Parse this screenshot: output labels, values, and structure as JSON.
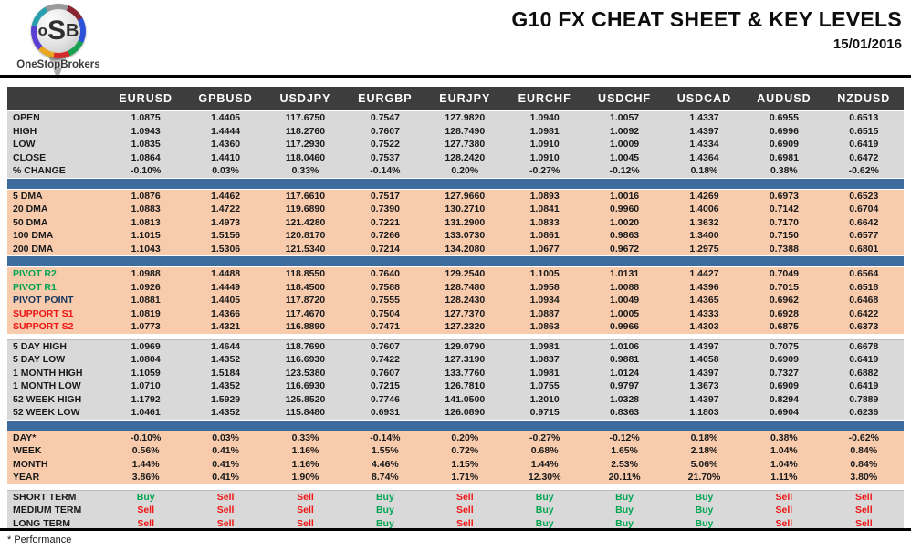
{
  "brand": {
    "logo_o": "o",
    "logo_s": "S",
    "logo_b": "B",
    "logo_caption": "OneStopBrokers"
  },
  "header": {
    "title": "G10 FX CHEAT SHEET & KEY LEVELS",
    "date": "15/01/2016"
  },
  "footnote": "* Performance",
  "colors": {
    "header_bar": "#3d3d3d",
    "gray_section": "#d9d9d9",
    "peach_section": "#f8cbad",
    "blue_divider": "#3e6b9e",
    "buy_green": "#00a551",
    "sell_red": "#f01414",
    "pivot_navy": "#17365d"
  },
  "table": {
    "columns": [
      "EURUSD",
      "GPBUSD",
      "USDJPY",
      "EURGBP",
      "EURJPY",
      "EURCHF",
      "USDCHF",
      "USDCAD",
      "AUDUSD",
      "NZDUSD"
    ],
    "sections": [
      {
        "id": "ohlc",
        "theme": "gray",
        "divider_before": null,
        "rows": [
          {
            "label": "OPEN",
            "values": [
              "1.0875",
              "1.4405",
              "117.6750",
              "0.7547",
              "127.9820",
              "1.0940",
              "1.0057",
              "1.4337",
              "0.6955",
              "0.6513"
            ]
          },
          {
            "label": "HIGH",
            "values": [
              "1.0943",
              "1.4444",
              "118.2760",
              "0.7607",
              "128.7490",
              "1.0981",
              "1.0092",
              "1.4397",
              "0.6996",
              "0.6515"
            ]
          },
          {
            "label": "LOW",
            "values": [
              "1.0835",
              "1.4360",
              "117.2930",
              "0.7522",
              "127.7380",
              "1.0910",
              "1.0009",
              "1.4334",
              "0.6909",
              "0.6419"
            ]
          },
          {
            "label": "CLOSE",
            "values": [
              "1.0864",
              "1.4410",
              "118.0460",
              "0.7537",
              "128.2420",
              "1.0910",
              "1.0045",
              "1.4364",
              "0.6981",
              "0.6472"
            ]
          },
          {
            "label": "% CHANGE",
            "values": [
              "-0.10%",
              "0.03%",
              "0.33%",
              "-0.14%",
              "0.20%",
              "-0.27%",
              "-0.12%",
              "0.18%",
              "0.38%",
              "-0.62%"
            ]
          }
        ]
      },
      {
        "id": "dma",
        "theme": "peach",
        "divider_before": "blue",
        "rows": [
          {
            "label": "5 DMA",
            "values": [
              "1.0876",
              "1.4462",
              "117.6610",
              "0.7517",
              "127.9660",
              "1.0893",
              "1.0016",
              "1.4269",
              "0.6973",
              "0.6523"
            ]
          },
          {
            "label": "20 DMA",
            "values": [
              "1.0883",
              "1.4722",
              "119.6890",
              "0.7390",
              "130.2710",
              "1.0841",
              "0.9960",
              "1.4006",
              "0.7142",
              "0.6704"
            ]
          },
          {
            "label": "50 DMA",
            "values": [
              "1.0813",
              "1.4973",
              "121.4280",
              "0.7221",
              "131.2900",
              "1.0833",
              "1.0020",
              "1.3632",
              "0.7170",
              "0.6642"
            ]
          },
          {
            "label": "100 DMA",
            "values": [
              "1.1015",
              "1.5156",
              "120.8170",
              "0.7266",
              "133.0730",
              "1.0861",
              "0.9863",
              "1.3400",
              "0.7150",
              "0.6577"
            ]
          },
          {
            "label": "200 DMA",
            "values": [
              "1.1043",
              "1.5306",
              "121.5340",
              "0.7214",
              "134.2080",
              "1.0677",
              "0.9672",
              "1.2975",
              "0.7388",
              "0.6801"
            ]
          }
        ]
      },
      {
        "id": "pivots",
        "theme": "peach",
        "divider_before": "blue",
        "rows": [
          {
            "label": "PIVOT R2",
            "label_class": "green",
            "values": [
              "1.0988",
              "1.4488",
              "118.8550",
              "0.7640",
              "129.2540",
              "1.1005",
              "1.0131",
              "1.4427",
              "0.7049",
              "0.6564"
            ]
          },
          {
            "label": "PIVOT R1",
            "label_class": "green",
            "values": [
              "1.0926",
              "1.4449",
              "118.4500",
              "0.7588",
              "128.7480",
              "1.0958",
              "1.0088",
              "1.4396",
              "0.7015",
              "0.6518"
            ]
          },
          {
            "label": "PIVOT POINT",
            "label_class": "navy",
            "values": [
              "1.0881",
              "1.4405",
              "117.8720",
              "0.7555",
              "128.2430",
              "1.0934",
              "1.0049",
              "1.4365",
              "0.6962",
              "0.6468"
            ]
          },
          {
            "label": "SUPPORT S1",
            "label_class": "red",
            "values": [
              "1.0819",
              "1.4366",
              "117.4670",
              "0.7504",
              "127.7370",
              "1.0887",
              "1.0005",
              "1.4333",
              "0.6928",
              "0.6422"
            ]
          },
          {
            "label": "SUPPORT S2",
            "label_class": "red",
            "values": [
              "1.0773",
              "1.4321",
              "116.8890",
              "0.7471",
              "127.2320",
              "1.0863",
              "0.9966",
              "1.4303",
              "0.6875",
              "0.6373"
            ]
          }
        ]
      },
      {
        "id": "ranges",
        "theme": "gray",
        "divider_before": "gap",
        "top_border": true,
        "rows": [
          {
            "label": "5 DAY HIGH",
            "values": [
              "1.0969",
              "1.4644",
              "118.7690",
              "0.7607",
              "129.0790",
              "1.0981",
              "1.0106",
              "1.4397",
              "0.7075",
              "0.6678"
            ]
          },
          {
            "label": "5 DAY LOW",
            "values": [
              "1.0804",
              "1.4352",
              "116.6930",
              "0.7422",
              "127.3190",
              "1.0837",
              "0.9881",
              "1.4058",
              "0.6909",
              "0.6419"
            ]
          },
          {
            "label": "1 MONTH HIGH",
            "values": [
              "1.1059",
              "1.5184",
              "123.5380",
              "0.7607",
              "133.7760",
              "1.0981",
              "1.0124",
              "1.4397",
              "0.7327",
              "0.6882"
            ]
          },
          {
            "label": "1 MONTH LOW",
            "values": [
              "1.0710",
              "1.4352",
              "116.6930",
              "0.7215",
              "126.7810",
              "1.0755",
              "0.9797",
              "1.3673",
              "0.6909",
              "0.6419"
            ]
          },
          {
            "label": "52 WEEK HIGH",
            "values": [
              "1.1792",
              "1.5929",
              "125.8520",
              "0.7746",
              "141.0500",
              "1.2010",
              "1.0328",
              "1.4397",
              "0.8294",
              "0.7889"
            ]
          },
          {
            "label": "52 WEEK LOW",
            "values": [
              "1.0461",
              "1.4352",
              "115.8480",
              "0.6931",
              "126.0890",
              "0.9715",
              "0.8363",
              "1.1803",
              "0.6904",
              "0.6236"
            ]
          }
        ]
      },
      {
        "id": "performance",
        "theme": "peach",
        "divider_before": "blue",
        "rows": [
          {
            "label": "DAY*",
            "values": [
              "-0.10%",
              "0.03%",
              "0.33%",
              "-0.14%",
              "0.20%",
              "-0.27%",
              "-0.12%",
              "0.18%",
              "0.38%",
              "-0.62%"
            ]
          },
          {
            "label": "WEEK",
            "values": [
              "0.56%",
              "0.41%",
              "1.16%",
              "1.55%",
              "0.72%",
              "0.68%",
              "1.65%",
              "2.18%",
              "1.04%",
              "0.84%"
            ]
          },
          {
            "label": "MONTH",
            "values": [
              "1.44%",
              "0.41%",
              "1.16%",
              "4.46%",
              "1.15%",
              "1.44%",
              "2.53%",
              "5.06%",
              "1.04%",
              "0.84%"
            ]
          },
          {
            "label": "YEAR",
            "values": [
              "3.86%",
              "0.41%",
              "1.90%",
              "8.74%",
              "1.71%",
              "12.30%",
              "20.11%",
              "21.70%",
              "1.11%",
              "3.80%"
            ]
          }
        ]
      },
      {
        "id": "signals",
        "theme": "gray",
        "divider_before": "gap",
        "top_border": true,
        "colorize_values": true,
        "rows": [
          {
            "label": "SHORT TERM",
            "values": [
              "Buy",
              "Sell",
              "Sell",
              "Buy",
              "Sell",
              "Buy",
              "Buy",
              "Buy",
              "Sell",
              "Sell"
            ]
          },
          {
            "label": "MEDIUM TERM",
            "values": [
              "Sell",
              "Sell",
              "Sell",
              "Buy",
              "Sell",
              "Buy",
              "Buy",
              "Buy",
              "Sell",
              "Sell"
            ]
          },
          {
            "label": "LONG TERM",
            "values": [
              "Sell",
              "Sell",
              "Sell",
              "Buy",
              "Sell",
              "Buy",
              "Buy",
              "Buy",
              "Sell",
              "Sell"
            ]
          }
        ]
      }
    ]
  }
}
